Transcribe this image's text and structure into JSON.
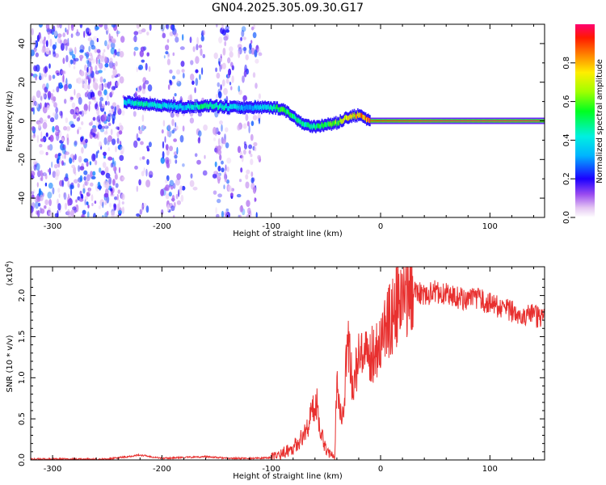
{
  "title": "GN04.2025.305.09.30.G17",
  "chart_data": [
    {
      "type": "heatmap",
      "xlabel": "Height of straight line (km)",
      "ylabel": "Frequency (Hz)",
      "xlim": [
        -320,
        150
      ],
      "ylim": [
        -50,
        50
      ],
      "x_ticks": [
        -300,
        -200,
        -100,
        0,
        100
      ],
      "y_ticks": [
        -40,
        -20,
        0,
        20,
        40
      ],
      "colorbar": {
        "label": "Normalized spectral amplitude",
        "range": [
          0,
          1
        ],
        "ticks": [
          "0.0",
          "0.2",
          "0.4",
          "0.6",
          "0.8"
        ],
        "tick_values": [
          0.0,
          0.2,
          0.4,
          0.6,
          0.8
        ]
      },
      "ridge": {
        "x": [
          -235,
          -220,
          -200,
          -180,
          -160,
          -140,
          -120,
          -100,
          -90,
          -80,
          -70,
          -60,
          -50,
          -40,
          -30,
          -20,
          -10,
          0,
          50,
          100,
          150
        ],
        "y": [
          10,
          9,
          8,
          7,
          8,
          7,
          7,
          7,
          6,
          2,
          -2,
          -3,
          -2,
          -1,
          2,
          3,
          0,
          0,
          0,
          0,
          0
        ],
        "amplitude": [
          0.35,
          0.45,
          0.4,
          0.35,
          0.5,
          0.4,
          0.3,
          0.45,
          0.55,
          0.5,
          0.45,
          0.5,
          0.55,
          0.6,
          0.7,
          0.8,
          0.9,
          0.95,
          1.0,
          1.0,
          1.0
        ]
      },
      "noise_region_x": [
        -320,
        -110
      ],
      "noise_amplitude_range": [
        0.0,
        0.25
      ]
    },
    {
      "type": "line",
      "xlabel": "Height of straight line (km)",
      "ylabel": "SNR (10 * v/v)",
      "exponent_label": "(x10",
      "exponent_power": "4",
      "exponent_close": ")",
      "xlim": [
        -320,
        150
      ],
      "ylim": [
        0,
        2.35
      ],
      "x_ticks": [
        -300,
        -200,
        -100,
        0,
        100
      ],
      "y_ticks": [
        "0.0",
        "0.5",
        "1.0",
        "1.5",
        "2.0"
      ],
      "y_tick_values": [
        0.0,
        0.5,
        1.0,
        1.5,
        2.0
      ],
      "color": "#e8302f",
      "series": [
        {
          "x": [
            -320,
            -250,
            -220,
            -200,
            -160,
            -140,
            -110,
            -100,
            -90,
            -80,
            -70,
            -62,
            -58,
            -55,
            -50,
            -45,
            -42,
            -40,
            -35,
            -30,
            -25,
            -20,
            -15,
            -10,
            -5,
            0,
            5,
            10,
            15,
            20,
            25,
            30,
            40,
            50,
            60,
            70,
            80,
            90,
            100,
            110,
            120,
            130,
            140,
            150
          ],
          "y": [
            0.01,
            0.01,
            0.06,
            0.02,
            0.04,
            0.02,
            0.02,
            0.03,
            0.08,
            0.15,
            0.3,
            0.6,
            0.7,
            0.35,
            0.15,
            0.05,
            0.0,
            1.0,
            0.5,
            1.4,
            0.9,
            1.25,
            1.2,
            1.25,
            1.35,
            1.45,
            1.6,
            1.75,
            1.85,
            1.95,
            2.05,
            2.1,
            2.0,
            2.05,
            2.02,
            1.98,
            1.95,
            1.95,
            1.9,
            1.85,
            1.8,
            1.78,
            1.75,
            1.72
          ]
        }
      ]
    }
  ]
}
